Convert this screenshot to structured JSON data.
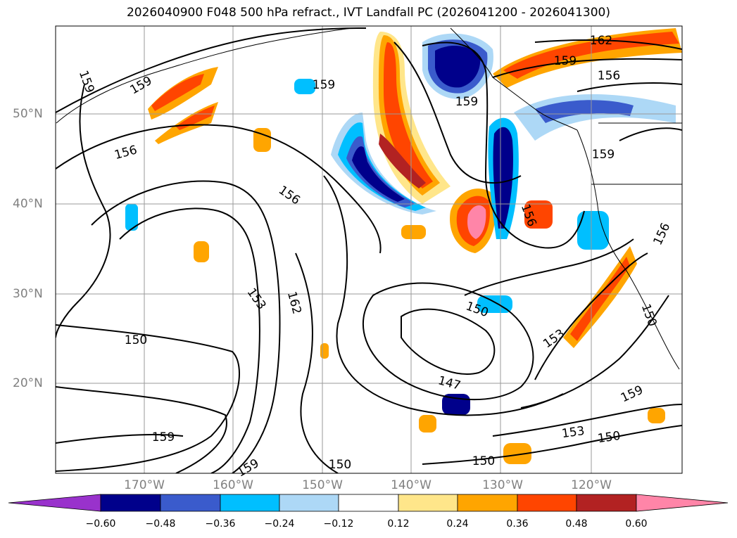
{
  "title": "2026040900 F048 500 hPa refract., IVT Landfall PC (2026041200 - 2026041300)",
  "axes": {
    "lon_labels": [
      "170°W",
      "160°W",
      "150°W",
      "140°W",
      "130°W",
      "120°W"
    ],
    "lat_labels": [
      "50°N",
      "40°N",
      "30°N",
      "20°N"
    ]
  },
  "contour_labels": [
    "159",
    "159",
    "156",
    "159",
    "156",
    "159",
    "162",
    "159",
    "156",
    "159",
    "156",
    "156",
    "153",
    "162",
    "150",
    "150",
    "147",
    "153",
    "150",
    "153",
    "150",
    "159",
    "159",
    "159",
    "150"
  ],
  "colorbar": {
    "ticks": [
      "−0.60",
      "−0.48",
      "−0.36",
      "−0.24",
      "−0.12",
      "0.12",
      "0.24",
      "0.36",
      "0.48",
      "0.60"
    ],
    "colors": [
      "#9932cc",
      "#00008b",
      "#3a5bcc",
      "#00bfff",
      "#add8f6",
      "#ffffff",
      "#ffe68a",
      "#ffa500",
      "#ff4500",
      "#b22222",
      "#ff85a8"
    ]
  }
}
